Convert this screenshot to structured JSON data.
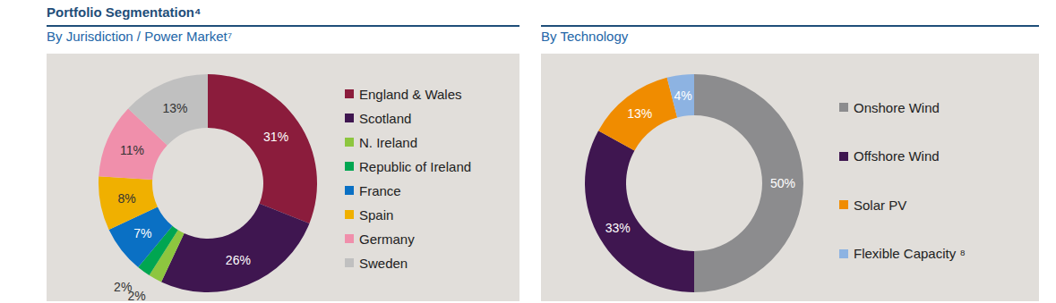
{
  "title": "Portfolio Segmentation⁴",
  "chart_data": [
    {
      "type": "pie",
      "title": "By Jurisdiction / Power Market⁷",
      "categories": [
        "England & Wales",
        "Scotland",
        "N. Ireland",
        "Republic of Ireland",
        "France",
        "Spain",
        "Germany",
        "Sweden"
      ],
      "values": [
        31,
        26,
        2,
        2,
        7,
        8,
        11,
        13
      ],
      "value_labels": [
        "31%",
        "26%",
        "2%",
        "2%",
        "7%",
        "8%",
        "11%",
        "13%"
      ],
      "colors": [
        "#8b1c3c",
        "#3f1650",
        "#8dc63f",
        "#00a651",
        "#0a70c4",
        "#f0b000",
        "#f08fab",
        "#c0c0c0"
      ],
      "data_labels": true
    },
    {
      "type": "pie",
      "title": "By Technology",
      "categories": [
        "Onshore Wind",
        "Offshore Wind",
        "Solar PV",
        "Flexible Capacity ⁸"
      ],
      "values": [
        50,
        33,
        13,
        4
      ],
      "value_labels": [
        "50%",
        "33%",
        "13%",
        "4%"
      ],
      "colors": [
        "#8c8c8e",
        "#3f1650",
        "#f08c00",
        "#8db3e2"
      ],
      "data_labels": true
    }
  ]
}
